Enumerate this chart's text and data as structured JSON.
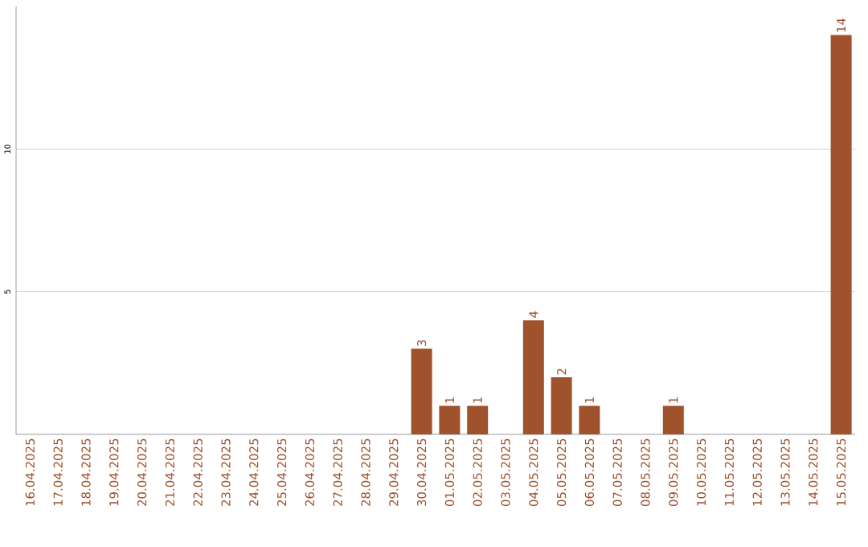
{
  "chart_data": {
    "type": "bar",
    "categories": [
      "16.04.2025",
      "17.04.2025",
      "18.04.2025",
      "19.04.2025",
      "20.04.2025",
      "21.04.2025",
      "22.04.2025",
      "23.04.2025",
      "24.04.2025",
      "25.04.2025",
      "26.04.2025",
      "27.04.2025",
      "28.04.2025",
      "29.04.2025",
      "30.04.2025",
      "01.05.2025",
      "02.05.2025",
      "03.05.2025",
      "04.05.2025",
      "05.05.2025",
      "06.05.2025",
      "07.05.2025",
      "08.05.2025",
      "09.05.2025",
      "10.05.2025",
      "11.05.2025",
      "12.05.2025",
      "13.05.2025",
      "14.05.2025",
      "15.05.2025"
    ],
    "values": [
      0,
      0,
      0,
      0,
      0,
      0,
      0,
      0,
      0,
      0,
      0,
      0,
      0,
      0,
      3,
      1,
      1,
      0,
      4,
      2,
      1,
      0,
      0,
      1,
      0,
      0,
      0,
      0,
      0,
      14
    ],
    "value_labels": [
      null,
      null,
      null,
      null,
      null,
      null,
      null,
      null,
      null,
      null,
      null,
      null,
      null,
      null,
      "3",
      "1",
      "1",
      null,
      "4",
      "2",
      "1",
      null,
      null,
      "1",
      null,
      null,
      null,
      null,
      null,
      "14"
    ],
    "color": "#a0522d",
    "ylim": [
      0,
      15
    ],
    "yticks": [
      5,
      10
    ],
    "grid": "y"
  }
}
